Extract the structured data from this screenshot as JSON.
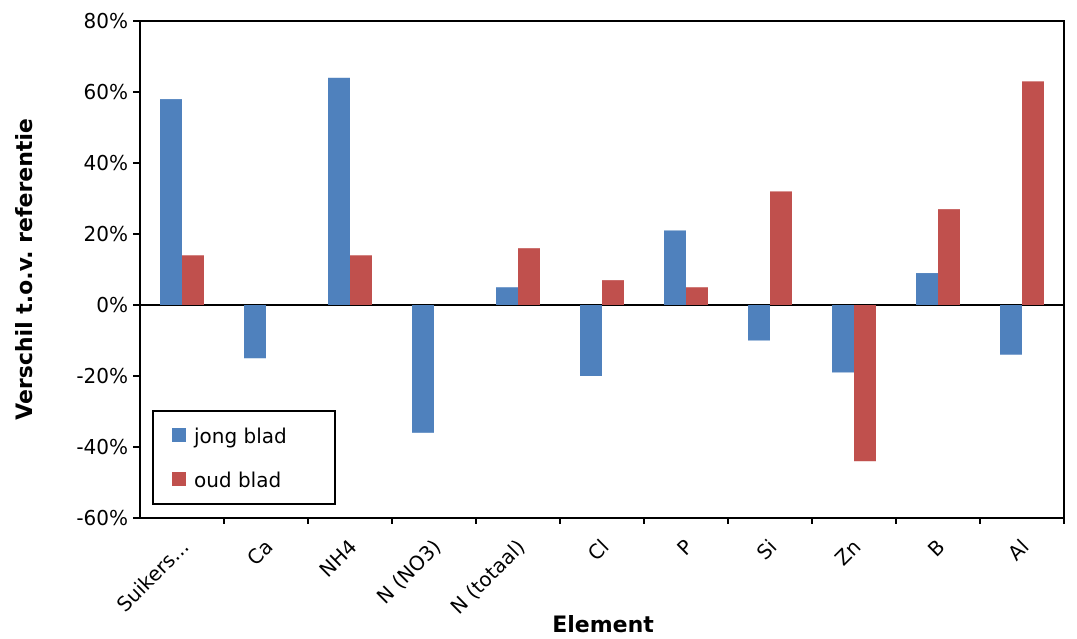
{
  "chart_data": {
    "type": "bar",
    "title": "",
    "xlabel": "Element",
    "ylabel": "Verschil t.o.v. referentie",
    "categories": [
      "Suikers...",
      "Ca",
      "NH4",
      "N (NO3)",
      "N (totaal)",
      "Cl",
      "P",
      "Si",
      "Zn",
      "B",
      "Al"
    ],
    "series": [
      {
        "name": "jong blad",
        "color": "#4f81bd",
        "values": [
          58,
          -15,
          64,
          -36,
          5,
          -20,
          21,
          -10,
          -19,
          9,
          -14
        ]
      },
      {
        "name": "oud blad",
        "color": "#c0504d",
        "values": [
          14,
          0,
          14,
          0,
          16,
          7,
          5,
          32,
          -44,
          27,
          63
        ]
      }
    ],
    "ylim": [
      -60,
      80
    ],
    "yticks": [
      "80%",
      "60%",
      "40%",
      "20%",
      "0%",
      "-20%",
      "-40%",
      "-60%"
    ],
    "ytick_values": [
      80,
      60,
      40,
      20,
      0,
      -20,
      -40,
      -60
    ],
    "grid": false,
    "legend_position": "bottom-left"
  }
}
